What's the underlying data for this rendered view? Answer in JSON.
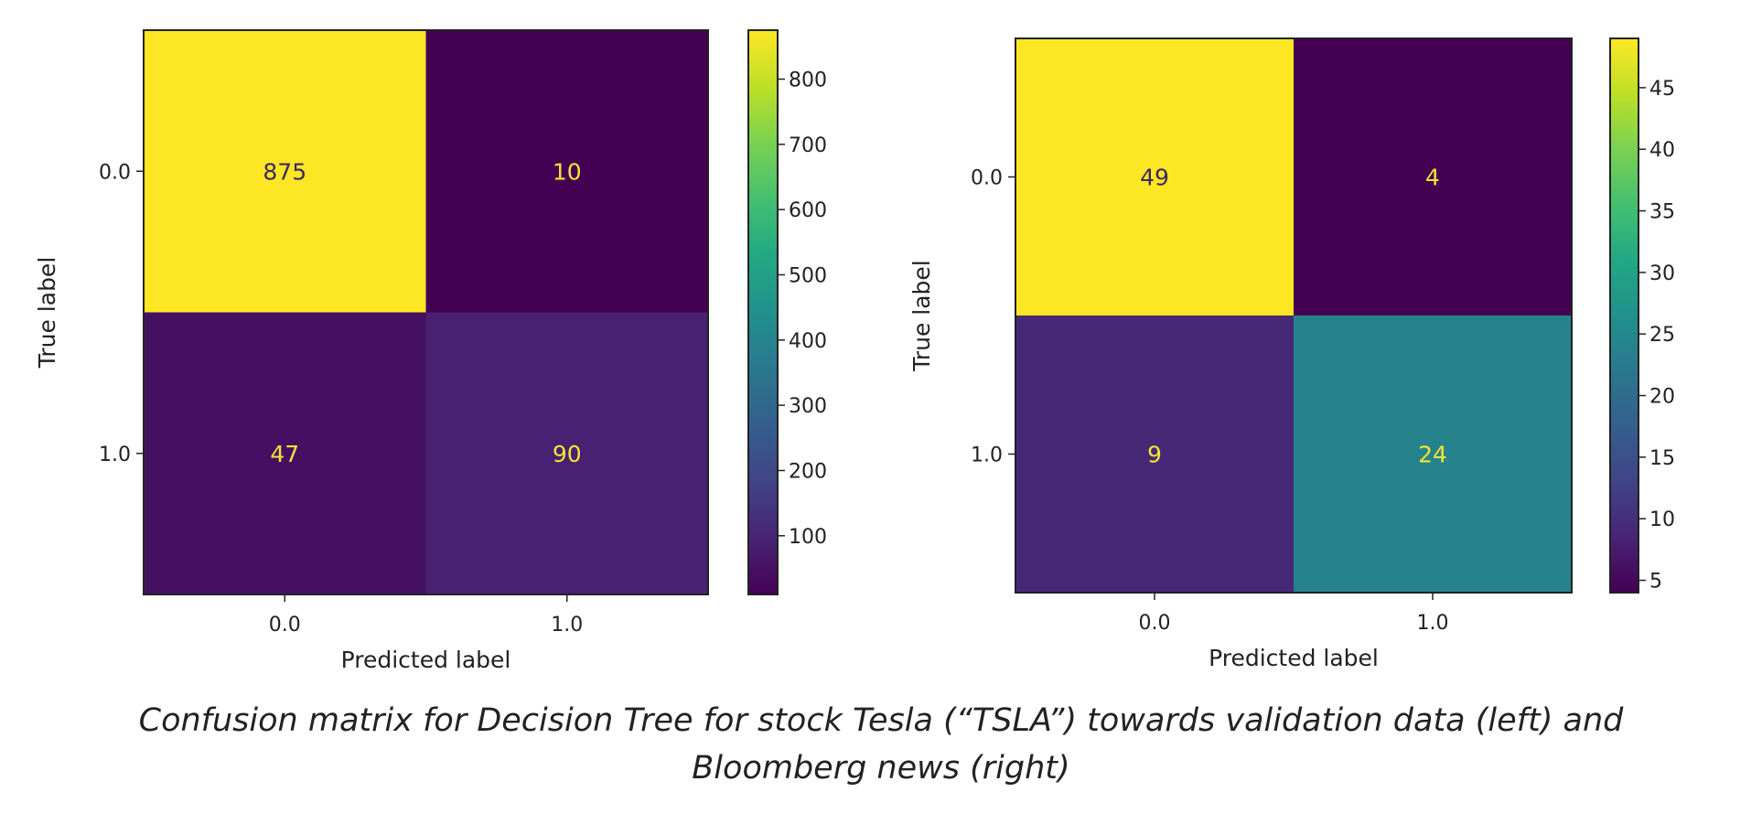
{
  "chart_data": [
    {
      "type": "heatmap",
      "title": "",
      "xlabel": "Predicted label",
      "ylabel": "True label",
      "x_categories": [
        "0.0",
        "1.0"
      ],
      "y_categories": [
        "0.0",
        "1.0"
      ],
      "values": [
        [
          875,
          10
        ],
        [
          47,
          90
        ]
      ],
      "colormap": "viridis",
      "color_range": [
        10,
        875
      ],
      "colorbar_ticks": [
        100,
        200,
        300,
        400,
        500,
        600,
        700,
        800
      ],
      "colorbar_tick_labels": [
        "100",
        "200",
        "300",
        "400",
        "500",
        "600",
        "700",
        "800"
      ],
      "grid": false,
      "legend": "colorbar-right"
    },
    {
      "type": "heatmap",
      "title": "",
      "xlabel": "Predicted label",
      "ylabel": "True label",
      "x_categories": [
        "0.0",
        "1.0"
      ],
      "y_categories": [
        "0.0",
        "1.0"
      ],
      "values": [
        [
          49,
          4
        ],
        [
          9,
          24
        ]
      ],
      "colormap": "viridis",
      "color_range": [
        4,
        49
      ],
      "colorbar_ticks": [
        5,
        10,
        15,
        20,
        25,
        30,
        35,
        40,
        45
      ],
      "colorbar_tick_labels": [
        "5",
        "10",
        "15",
        "20",
        "25",
        "30",
        "35",
        "40",
        "45"
      ],
      "grid": false,
      "legend": "colorbar-right"
    }
  ],
  "caption": {
    "line1": "Confusion matrix for Decision Tree for stock Tesla (“TSLA”) towards validation data (left) and",
    "line2": "Bloomberg news (right)"
  }
}
